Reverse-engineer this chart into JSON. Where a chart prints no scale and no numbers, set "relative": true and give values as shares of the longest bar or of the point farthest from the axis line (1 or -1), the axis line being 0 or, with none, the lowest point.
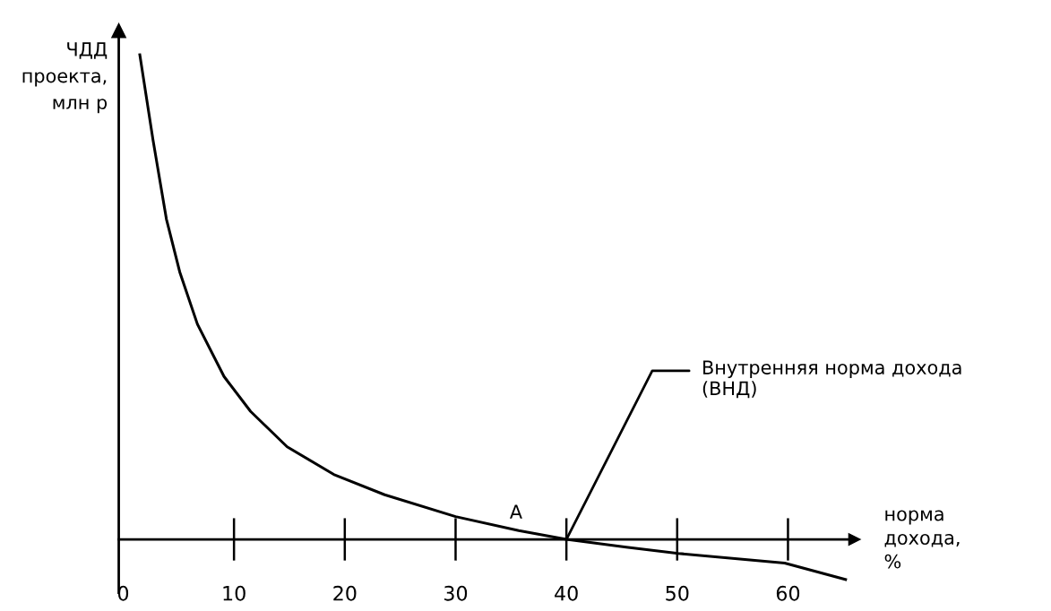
{
  "chart_data": {
    "type": "line",
    "relative": true,
    "ylabel": "ЧДД\nпроекта,\nмлн р",
    "xlabel": "норма\nдохода,\n%",
    "x": [
      1.5,
      2.7,
      3.9,
      5.1,
      6.7,
      9.1,
      11.5,
      14.8,
      19.0,
      23.6,
      30.0,
      35.7,
      40,
      45.4,
      50.1,
      59.7,
      65.2
    ],
    "series": [
      {
        "color": "#000000",
        "values": [
          1.0,
          0.823,
          0.661,
          0.552,
          0.444,
          0.336,
          0.264,
          0.191,
          0.134,
          0.092,
          0.047,
          0.018,
          0,
          -0.016,
          -0.029,
          -0.049,
          -0.083
        ]
      }
    ],
    "xlim": [
      -0.4,
      66
    ],
    "xticks": [
      0,
      10,
      20,
      30,
      40,
      50,
      60
    ],
    "annotations": [
      {
        "text": "Внутренняя норма дохода\n(ВНД)",
        "x": 40,
        "y": 0
      },
      "А"
    ],
    "grid": false,
    "legend": false,
    "marker": "none",
    "line_style": "solid"
  }
}
